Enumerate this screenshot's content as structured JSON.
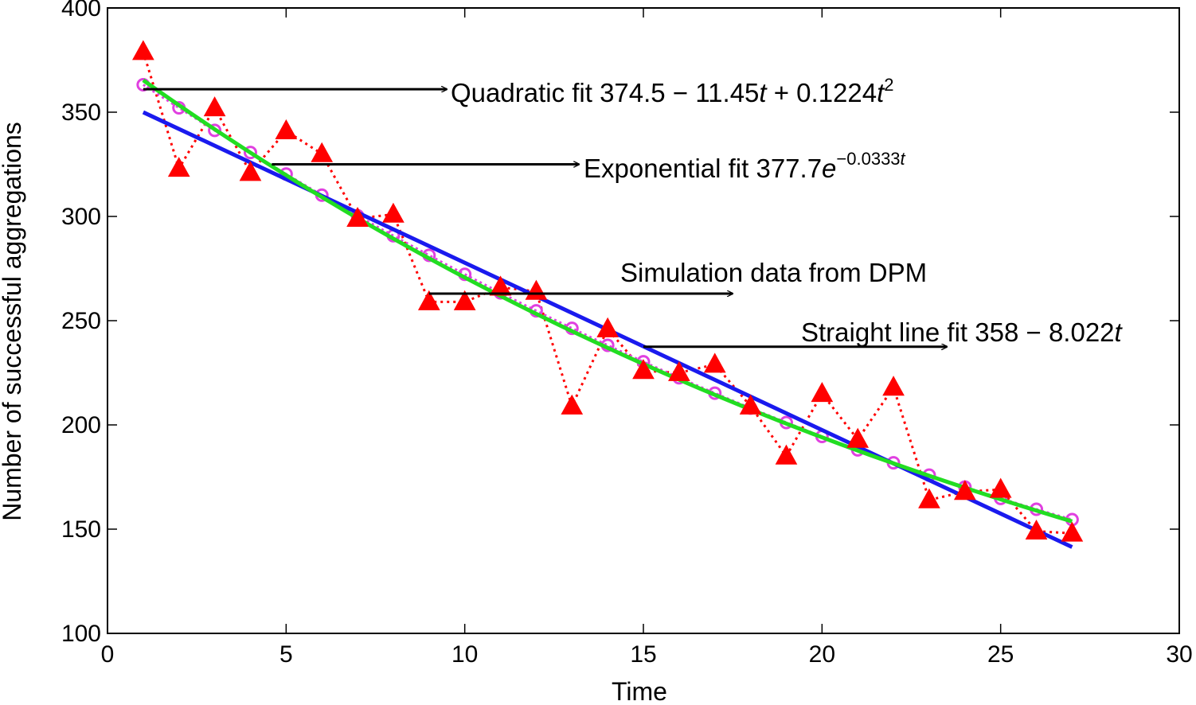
{
  "chart_data": {
    "type": "line",
    "xlabel": "Time",
    "ylabel": "Number of successful aggregations",
    "xlim": [
      0,
      30
    ],
    "ylim": [
      100,
      400
    ],
    "xticks": [
      0,
      5,
      10,
      15,
      20,
      25,
      30
    ],
    "yticks": [
      100,
      150,
      200,
      250,
      300,
      350,
      400
    ],
    "grid": false,
    "colors": {
      "simulation": "#ff0000",
      "quadratic": "#e040e0",
      "exponential": "#22dd22",
      "linear": "#1a1aee"
    },
    "series": [
      {
        "key": "simulation",
        "x": [
          1,
          2,
          3,
          4,
          5,
          6,
          7,
          8,
          9,
          10,
          11,
          12,
          13,
          14,
          15,
          16,
          17,
          18,
          19,
          20,
          21,
          22,
          23,
          24,
          25,
          26,
          27
        ],
        "values": [
          379,
          323,
          352,
          321,
          341,
          330,
          299,
          301,
          259,
          259,
          266,
          264,
          209,
          246,
          226,
          225,
          229,
          209,
          185,
          215,
          193,
          218,
          164,
          168,
          169,
          149,
          148
        ],
        "marker": "triangle",
        "line": "dotted"
      },
      {
        "key": "quadratic",
        "expression": "374.5 - 11.45t + 0.1224t^2",
        "x": [
          1,
          2,
          3,
          4,
          5,
          6,
          7,
          8,
          9,
          10,
          11,
          12,
          13,
          14,
          15,
          16,
          17,
          18,
          19,
          20,
          21,
          22,
          23,
          24,
          25,
          26,
          27
        ],
        "marker": "circle",
        "line": "dotted"
      },
      {
        "key": "exponential",
        "expression": "377.7e^(-0.0333t)",
        "x": [
          1,
          27
        ],
        "line": "solid"
      },
      {
        "key": "linear",
        "expression": "358 - 8.022t",
        "x": [
          1,
          27
        ],
        "line": "solid"
      }
    ],
    "annotations": [
      {
        "key": "quadratic",
        "text": "Quadratic fit 374.5 − 11.45",
        "var1": "t",
        "mid": " + 0.1224",
        "var2": "t",
        "sup": "2",
        "arrow_from": [
          1,
          361
        ],
        "arrow_to": [
          9.5,
          361
        ]
      },
      {
        "key": "exponential",
        "text": "Exponential fit 377.7",
        "var1": "e",
        "sup": "−0.0333",
        "sup_var": "t",
        "arrow_from": [
          4.6,
          325
        ],
        "arrow_to": [
          13.2,
          325
        ]
      },
      {
        "key": "simulation",
        "text": "Simulation data from DPM",
        "arrow_from": [
          9,
          263
        ],
        "arrow_to": [
          17.5,
          263
        ]
      },
      {
        "key": "linear",
        "text": "Straight line fit 358 − 8.022",
        "var1": "t",
        "arrow_from": [
          15.0,
          237.5
        ],
        "arrow_to": [
          23.5,
          237.5
        ]
      }
    ]
  }
}
